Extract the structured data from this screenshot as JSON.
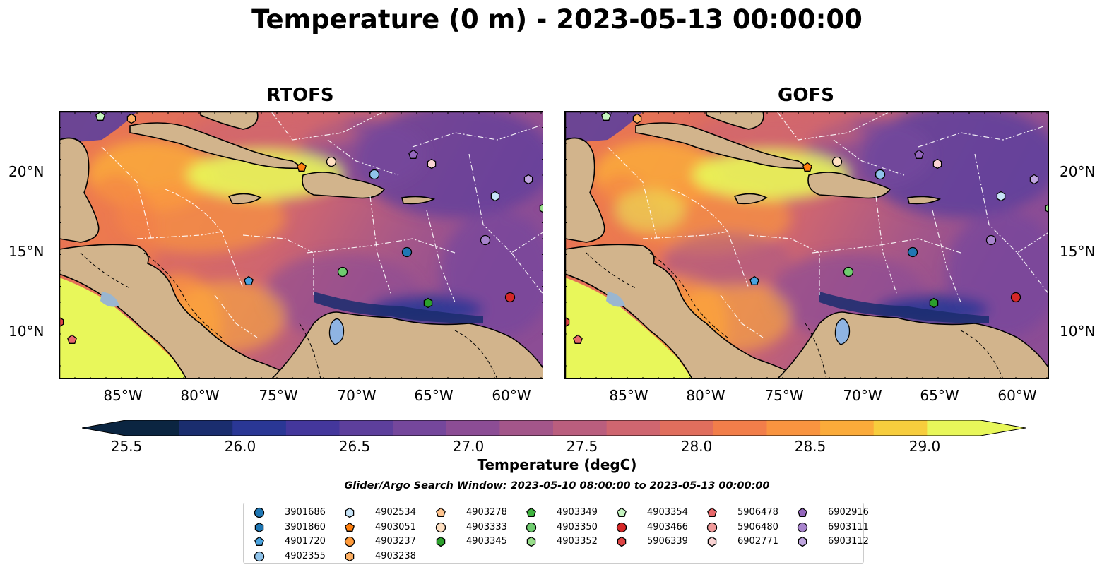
{
  "title": "Temperature (0 m) - 2023-05-13 00:00:00",
  "panels": [
    {
      "title": "RTOFS"
    },
    {
      "title": "GOFS"
    }
  ],
  "lon_labels": [
    "85°W",
    "80°W",
    "75°W",
    "70°W",
    "65°W",
    "60°W"
  ],
  "lat_labels": [
    "20°N",
    "15°N",
    "10°N"
  ],
  "colorbar": {
    "ticks": [
      "25.5",
      "26.0",
      "26.5",
      "27.0",
      "27.5",
      "28.0",
      "28.5",
      "29.0"
    ],
    "label": "Temperature (degC)",
    "colors": [
      "#0b2541",
      "#1a2d6e",
      "#2a3795",
      "#44379c",
      "#5d3f9c",
      "#75479c",
      "#8c4d95",
      "#a3568a",
      "#ba5e7e",
      "#cf6670",
      "#e06e5d",
      "#f27e4a",
      "#f99440",
      "#fbab3a",
      "#f7cd3d",
      "#e8f75a"
    ]
  },
  "search_window": "Glider/Argo Search Window: 2023-05-10 08:00:00 to 2023-05-13 00:00:00",
  "legend": [
    {
      "id": "3901686",
      "shape": "circle",
      "color": "#1f77b4"
    },
    {
      "id": "3901860",
      "shape": "hexagon",
      "color": "#1f77b4"
    },
    {
      "id": "4901720",
      "shape": "pentagon",
      "color": "#4aa3df"
    },
    {
      "id": "4902355",
      "shape": "circle",
      "color": "#8fc3ea"
    },
    {
      "id": "4902534",
      "shape": "hexagon",
      "color": "#c7e3f7"
    },
    {
      "id": "4903051",
      "shape": "pentagon",
      "color": "#ff7f0e"
    },
    {
      "id": "4903237",
      "shape": "circle",
      "color": "#ff9a3a"
    },
    {
      "id": "4903238",
      "shape": "hexagon",
      "color": "#ffb062"
    },
    {
      "id": "4903278",
      "shape": "pentagon",
      "color": "#ffc48e"
    },
    {
      "id": "4903333",
      "shape": "circle",
      "color": "#ffe0c2"
    },
    {
      "id": "4903345",
      "shape": "hexagon",
      "color": "#2ca02c"
    },
    {
      "id": "4903349",
      "shape": "pentagon",
      "color": "#3fb43f"
    },
    {
      "id": "4903350",
      "shape": "circle",
      "color": "#6fcc6f"
    },
    {
      "id": "4903352",
      "shape": "hexagon",
      "color": "#98df8a"
    },
    {
      "id": "4903354",
      "shape": "pentagon",
      "color": "#c6f5c0"
    },
    {
      "id": "4903466",
      "shape": "circle",
      "color": "#d62728"
    },
    {
      "id": "5906339",
      "shape": "hexagon",
      "color": "#e04545"
    },
    {
      "id": "5906478",
      "shape": "pentagon",
      "color": "#e8686a"
    },
    {
      "id": "5906480",
      "shape": "circle",
      "color": "#f09a9a"
    },
    {
      "id": "6902771",
      "shape": "hexagon",
      "color": "#fad3d3"
    },
    {
      "id": "6902916",
      "shape": "pentagon",
      "color": "#9467bd"
    },
    {
      "id": "6903111",
      "shape": "circle",
      "color": "#a783cc"
    },
    {
      "id": "6903112",
      "shape": "hexagon",
      "color": "#c0a6e0"
    }
  ]
}
